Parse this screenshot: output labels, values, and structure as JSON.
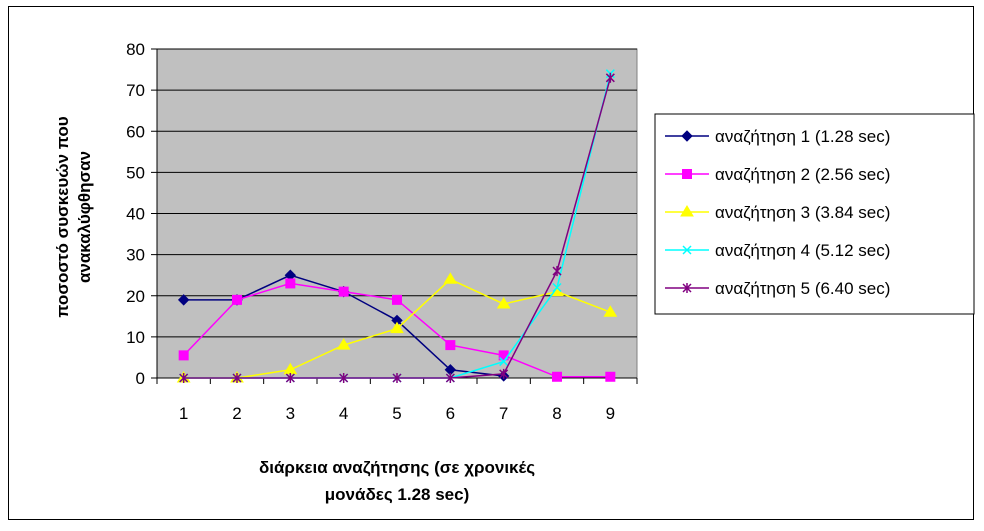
{
  "chart_data": {
    "type": "line",
    "title": "",
    "xlabel_lines": [
      "διάρκεια αναζήτησης (σε χρονικές",
      "μονάδες 1.28 sec)"
    ],
    "ylabel_lines": [
      "ποσοστό συσκευών που",
      "ανακαλύφθησαν"
    ],
    "categories": [
      "1",
      "2",
      "3",
      "4",
      "5",
      "6",
      "7",
      "8",
      "9"
    ],
    "ylim": [
      0,
      80
    ],
    "yticks": [
      "0",
      "10",
      "20",
      "30",
      "40",
      "50",
      "60",
      "70",
      "80"
    ],
    "grid": true,
    "legend_position": "right",
    "plot_background": "#c0c0c0",
    "series": [
      {
        "name": "αναζήτηση 1 (1.28 sec)",
        "color": "#000080",
        "marker": "diamond",
        "values": [
          19,
          19,
          25,
          21,
          14,
          2,
          0.5,
          null,
          null
        ]
      },
      {
        "name": "αναζήτηση 2 (2.56 sec)",
        "color": "#ff00ff",
        "marker": "square",
        "values": [
          5.5,
          19,
          23,
          21,
          19,
          8,
          5.5,
          0.3,
          0.3
        ]
      },
      {
        "name": "αναζήτηση 3 (3.84 sec)",
        "color": "#ffff00",
        "marker": "triangle",
        "values": [
          0,
          0,
          2,
          8,
          12,
          24,
          18,
          21,
          16
        ]
      },
      {
        "name": "αναζήτηση 4 (5.12 sec)",
        "color": "#00ffff",
        "marker": "x",
        "values": [
          0,
          0,
          0,
          0,
          0,
          0,
          4,
          22,
          74
        ]
      },
      {
        "name": "αναζήτηση 5 (6.40 sec)",
        "color": "#800080",
        "marker": "star",
        "values": [
          0,
          0,
          0,
          0,
          0,
          0,
          1,
          26,
          73
        ]
      }
    ]
  }
}
